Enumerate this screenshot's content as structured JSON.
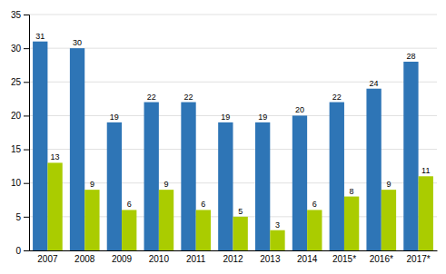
{
  "chart_data": {
    "type": "bar",
    "categories": [
      "2007",
      "2008",
      "2009",
      "2010",
      "2011",
      "2012",
      "2013",
      "2014",
      "2015*",
      "2016*",
      "2017*"
    ],
    "series": [
      {
        "color": "#2E75B6",
        "values": [
          31,
          30,
          19,
          22,
          22,
          19,
          19,
          20,
          22,
          24,
          28
        ]
      },
      {
        "color": "#AACC00",
        "values": [
          13,
          9,
          6,
          9,
          6,
          5,
          3,
          6,
          8,
          9,
          11
        ]
      }
    ],
    "ylim": [
      0,
      35
    ],
    "yticks": [
      0,
      5,
      10,
      15,
      20,
      25,
      30,
      35
    ],
    "grid": true,
    "data_labels": true
  }
}
